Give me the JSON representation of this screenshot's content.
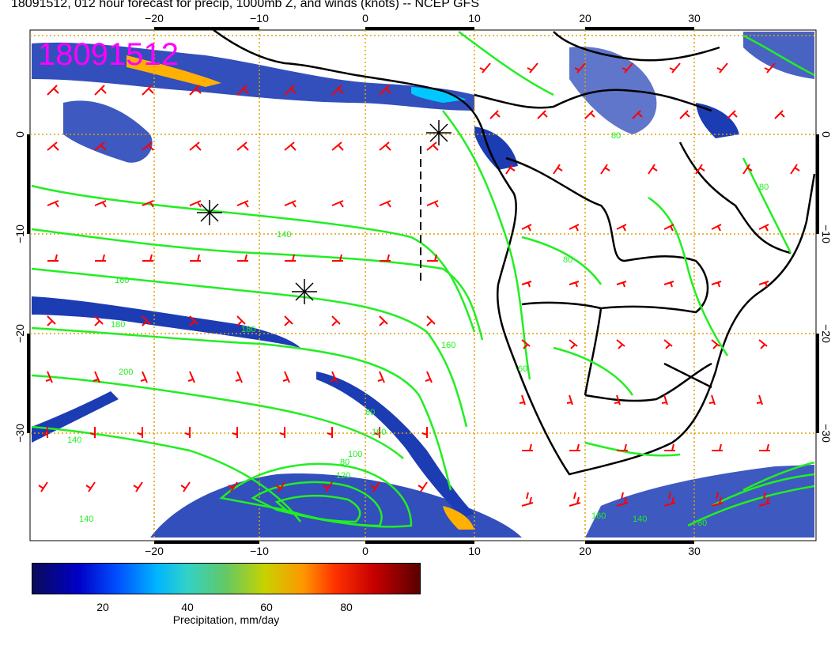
{
  "title": "18091512, 012 hour forecast for precip, 1000mb Z, and winds (knots) -- NCEP GFS",
  "date_stamp": "18091512",
  "axes": {
    "lon_ticks": [
      "−20",
      "−10",
      "0",
      "10",
      "20",
      "30"
    ],
    "lat_ticks": [
      "0",
      "−10",
      "−20",
      "−30"
    ]
  },
  "contour_labels": [
    "140",
    "160",
    "180",
    "180",
    "200",
    "160",
    "80",
    "60",
    "140",
    "160",
    "80",
    "100",
    "120",
    "140",
    "60",
    "160",
    "140",
    "80",
    "80",
    "80"
  ],
  "colorbar": {
    "ticks": [
      "20",
      "40",
      "60",
      "80"
    ],
    "label": "Precipitation, mm/day",
    "range": [
      0,
      100
    ]
  },
  "colors": {
    "stamp": "#ff00ff",
    "contours": "#22ee22",
    "barbs": "#ff0000",
    "grid": "#e0a000",
    "coast": "#000000"
  },
  "markers": [
    "asterisk",
    "asterisk",
    "asterisk"
  ]
}
